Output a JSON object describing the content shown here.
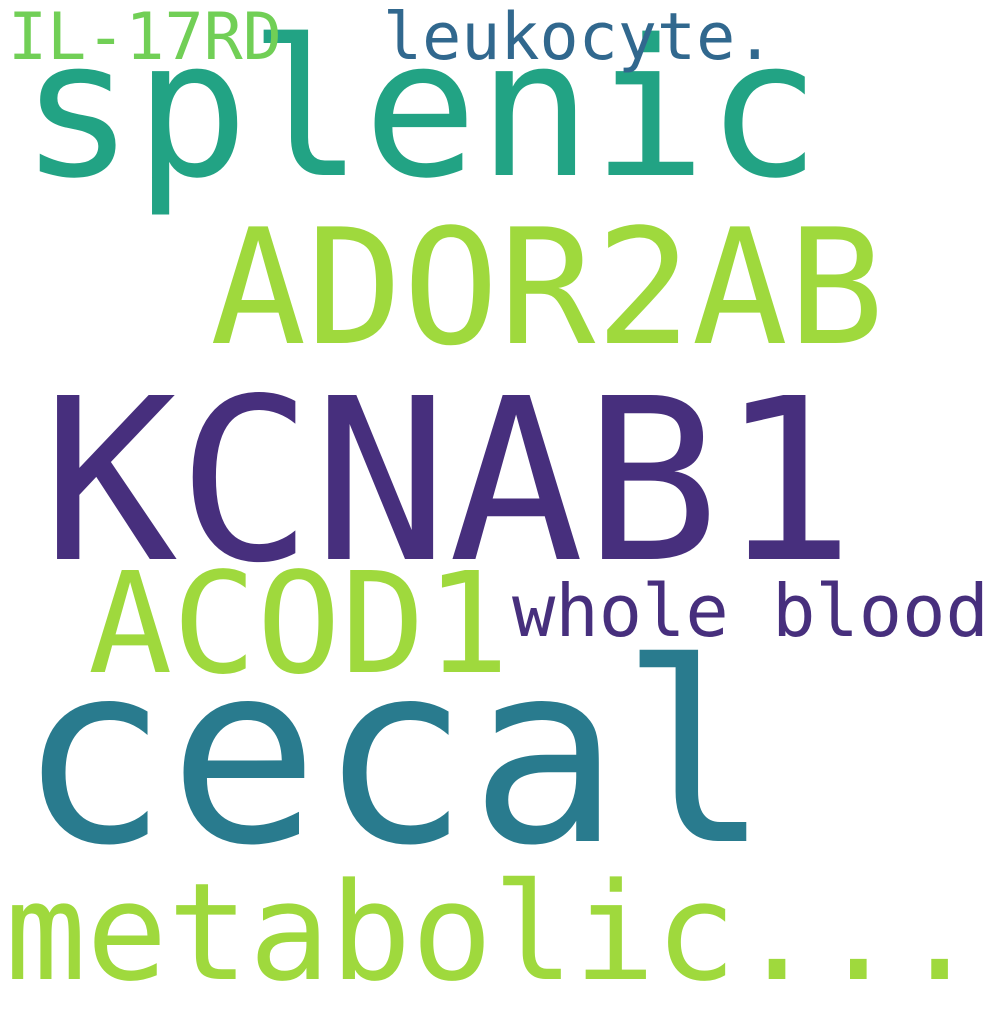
{
  "word_cloud": {
    "words": [
      {
        "text": "splenic",
        "color": "#22a384"
      },
      {
        "text": "ADOR2AB",
        "color": "#9fd93d"
      },
      {
        "text": "KCNAB1",
        "color": "#472f7d"
      },
      {
        "text": "ACOD1",
        "color": "#9fd93d"
      },
      {
        "text": "whole blood",
        "color": "#472f7d"
      },
      {
        "text": "cecal",
        "color": "#297b8e"
      },
      {
        "text": "metabolic...",
        "color": "#9fd93d"
      },
      {
        "text": "IL-17RD",
        "color": "#71cf56"
      },
      {
        "text": "leukocyte.",
        "color": "#31688e"
      }
    ]
  }
}
